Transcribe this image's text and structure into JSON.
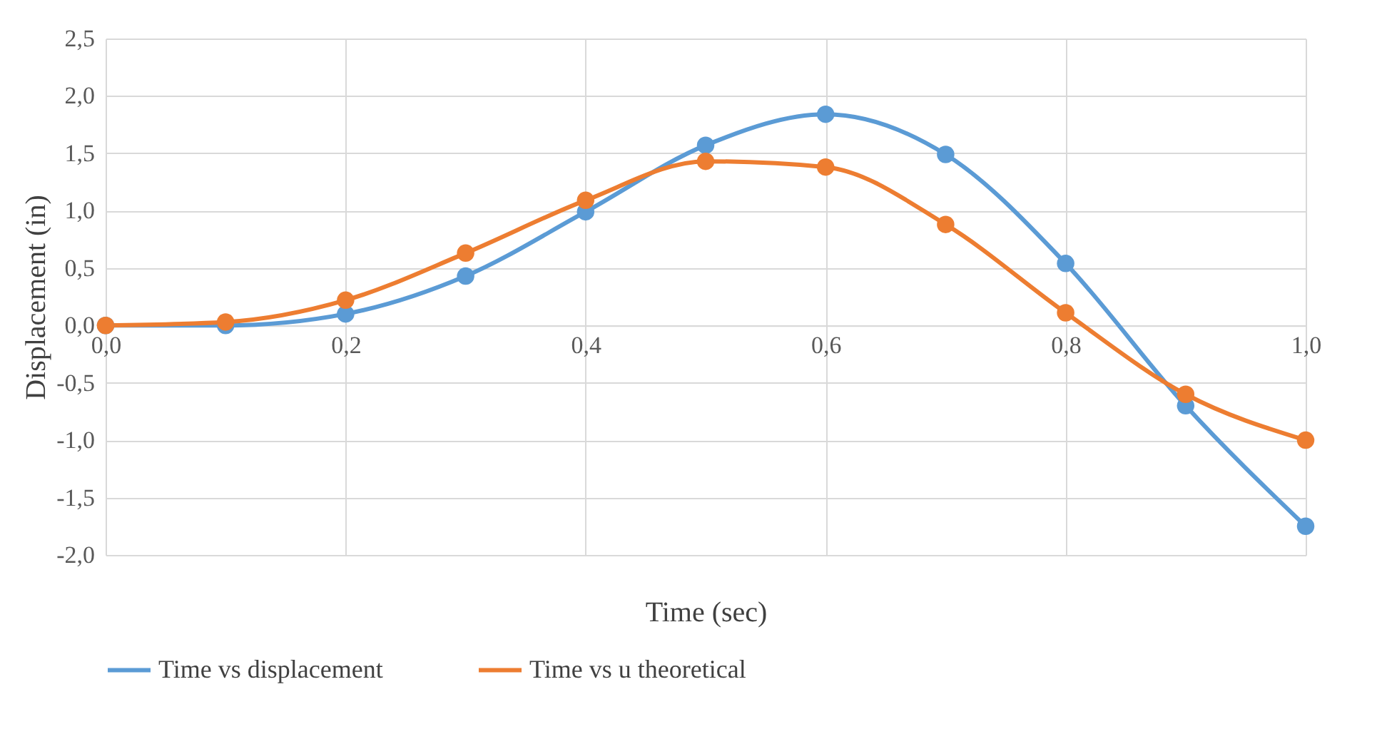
{
  "chart_data": {
    "type": "line",
    "xlabel": "Time (sec)",
    "ylabel": "Displacement (in)",
    "x": [
      0,
      0.1,
      0.2,
      0.3,
      0.4,
      0.5,
      0.6,
      0.7,
      0.8,
      0.9,
      1.0
    ],
    "series": [
      {
        "name": "Time vs displacement",
        "color": "#5b9bd5",
        "values": [
          0,
          0,
          0.1,
          0.43,
          0.99,
          1.57,
          1.84,
          1.49,
          0.54,
          -0.7,
          -1.75
        ]
      },
      {
        "name": "Time vs u theoretical",
        "color": "#ed7d31",
        "values": [
          0,
          0.03,
          0.22,
          0.63,
          1.09,
          1.43,
          1.38,
          0.88,
          0.11,
          -0.6,
          -1.0
        ]
      }
    ],
    "xlim": [
      0,
      1
    ],
    "xticks": [
      {
        "value": 0,
        "label": "0,0"
      },
      {
        "value": 0.2,
        "label": "0,2"
      },
      {
        "value": 0.4,
        "label": "0,4"
      },
      {
        "value": 0.6,
        "label": "0,6"
      },
      {
        "value": 0.8,
        "label": "0,8"
      },
      {
        "value": 1,
        "label": "1,0"
      }
    ],
    "ylim": [
      -2,
      2.5
    ],
    "yticks": [
      {
        "value": -2,
        "label": "-2,0"
      },
      {
        "value": -1.5,
        "label": "-1,5"
      },
      {
        "value": -1,
        "label": "-1,0"
      },
      {
        "value": -0.5,
        "label": "-0,5"
      },
      {
        "value": 0,
        "label": "0,0"
      },
      {
        "value": 0.5,
        "label": "0,5"
      },
      {
        "value": 1,
        "label": "1,0"
      },
      {
        "value": 1.5,
        "label": "1,5"
      },
      {
        "value": 2,
        "label": "2,0"
      },
      {
        "value": 2.5,
        "label": "2,5"
      }
    ],
    "grid": true,
    "legend": "bottom",
    "marker": "circle",
    "line_style": "solid"
  }
}
